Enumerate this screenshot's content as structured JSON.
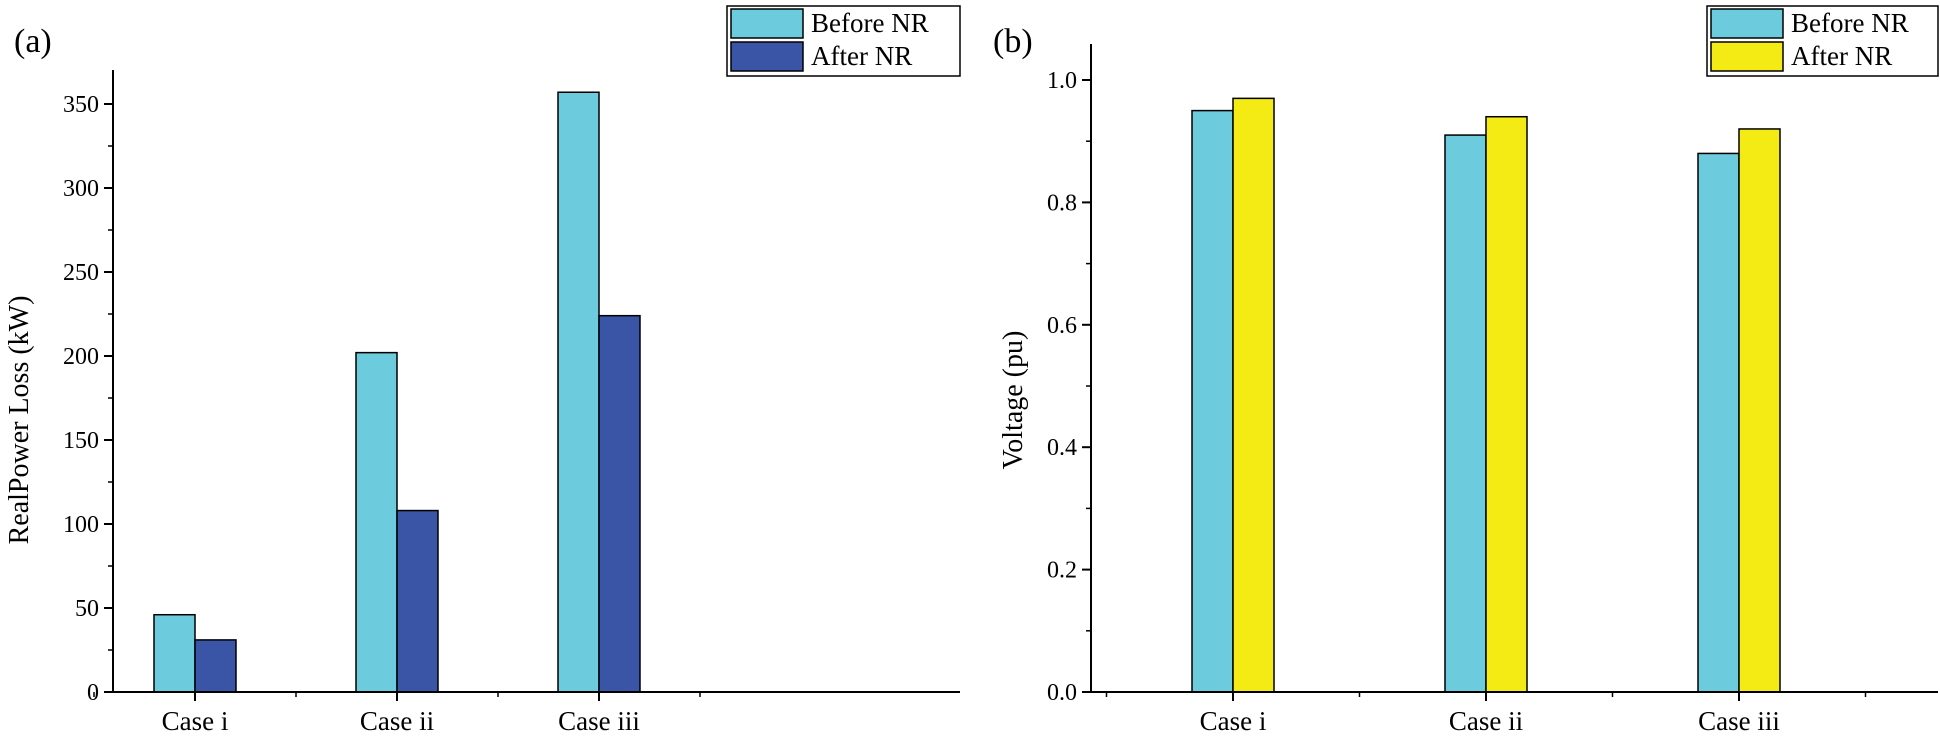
{
  "chart_data": [
    {
      "panel_label": "(a)",
      "type": "bar",
      "title": "",
      "xlabel": "",
      "ylabel": "RealPower Loss (kW)",
      "categories": [
        "Case i",
        "Case ii",
        "Case iii"
      ],
      "series": [
        {
          "name": "Before NR",
          "color": "#6ccbdc",
          "values": [
            46,
            202,
            357
          ]
        },
        {
          "name": "After NR",
          "color": "#3a55a5",
          "values": [
            31,
            108,
            224
          ]
        }
      ],
      "ylim": [
        0,
        380
      ],
      "yticks": [
        0,
        50,
        100,
        150,
        200,
        250,
        300,
        350
      ],
      "ytick_labels": [
        "0",
        "50",
        "100",
        "150",
        "200",
        "250",
        "300",
        "350"
      ],
      "legend_position": "top-right",
      "grid": false
    },
    {
      "panel_label": "(b)",
      "type": "bar",
      "title": "",
      "xlabel": "",
      "ylabel": "Voltage (pu)",
      "categories": [
        "Case i",
        "Case ii",
        "Case iii"
      ],
      "series": [
        {
          "name": "Before NR",
          "color": "#6ccbdc",
          "values": [
            0.95,
            0.91,
            0.88
          ]
        },
        {
          "name": "After NR",
          "color": "#f4ea14",
          "values": [
            0.97,
            0.94,
            0.92
          ]
        }
      ],
      "ylim": [
        0,
        1.05
      ],
      "yticks": [
        0,
        0.2,
        0.4,
        0.6,
        0.8,
        1.0
      ],
      "ytick_labels": [
        "0.0",
        "0.2",
        "0.4",
        "0.6",
        "0.8",
        "1.0"
      ],
      "legend_position": "top-right",
      "grid": false
    }
  ]
}
